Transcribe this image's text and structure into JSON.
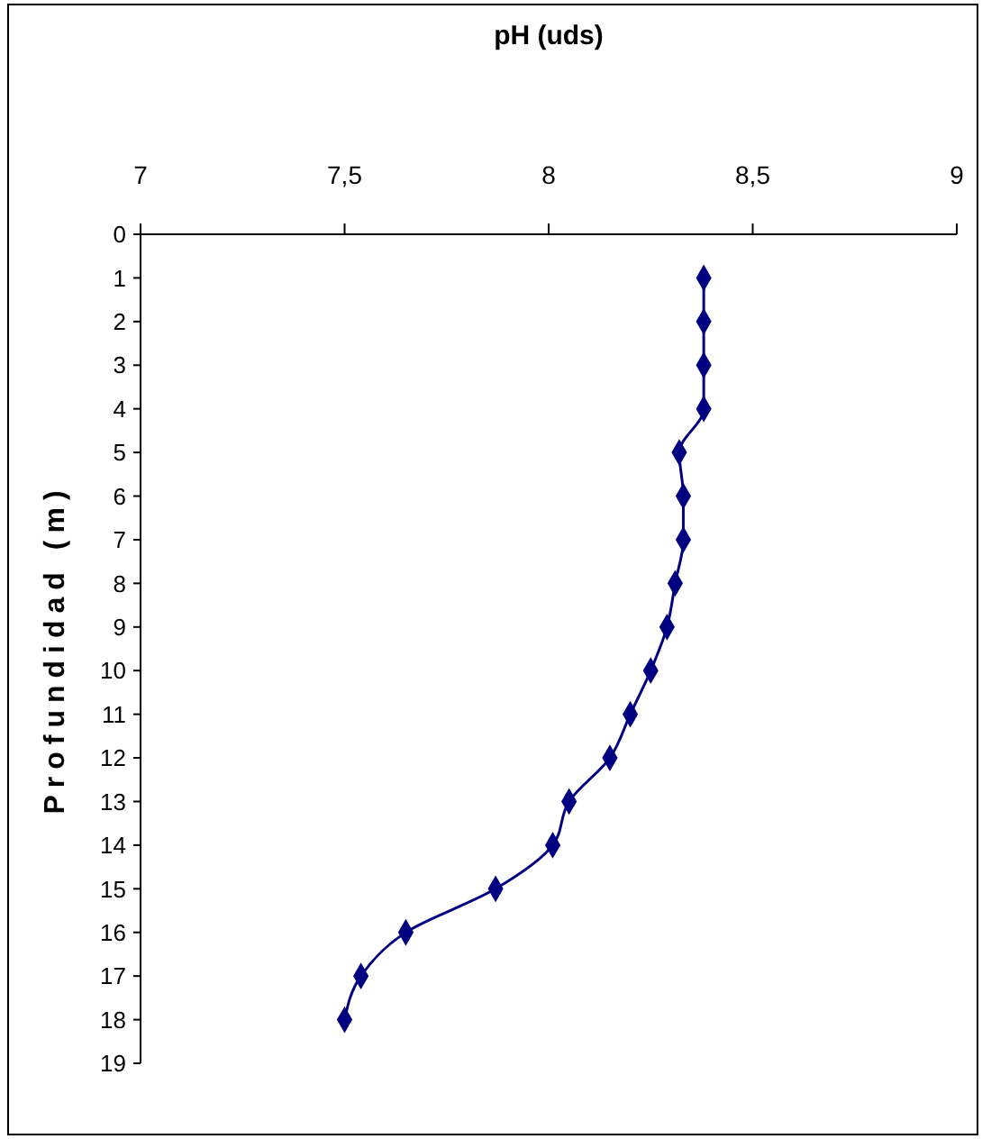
{
  "chart_data": {
    "type": "line",
    "xlabel": "pH (uds)",
    "ylabel": "Profundidad (m)",
    "x": [
      8.38,
      8.38,
      8.38,
      8.38,
      8.32,
      8.33,
      8.33,
      8.31,
      8.29,
      8.25,
      8.2,
      8.15,
      8.05,
      8.01,
      7.87,
      7.65,
      7.54,
      7.5
    ],
    "series": [
      {
        "color": "#000080",
        "values": [
          1,
          2,
          3,
          4,
          5,
          6,
          7,
          8,
          9,
          10,
          11,
          12,
          13,
          14,
          15,
          16,
          17,
          18
        ]
      }
    ],
    "xlim": [
      7,
      9
    ],
    "xticks": [
      7,
      {
        "value": 7.5,
        "label": "7,5"
      },
      8,
      {
        "value": 8.5,
        "label": "8,5"
      },
      9
    ],
    "ylim": [
      19,
      0
    ],
    "yticks": [
      0,
      1,
      2,
      3,
      4,
      5,
      6,
      7,
      8,
      9,
      10,
      11,
      12,
      13,
      14,
      15,
      16,
      17,
      18,
      19
    ],
    "grid": false,
    "marker": "diamond",
    "line_style": "solid"
  }
}
